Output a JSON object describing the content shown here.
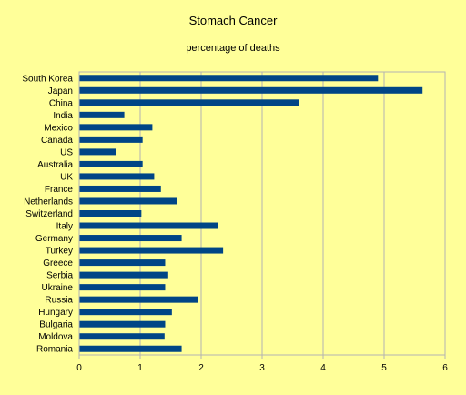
{
  "chart_data": {
    "type": "bar",
    "orientation": "horizontal",
    "title": "Stomach Cancer",
    "subtitle": "percentage of deaths",
    "xlabel": "",
    "ylabel": "",
    "xlim": [
      0,
      6
    ],
    "xticks": [
      0,
      1,
      2,
      3,
      4,
      5,
      6
    ],
    "grid": "vertical",
    "legend": "none",
    "bar_color": "#004586",
    "categories": [
      "South Korea",
      "Japan",
      "China",
      "India",
      "Mexico",
      "Canada",
      "US",
      "Australia",
      "UK",
      "France",
      "Netherlands",
      "Switzerland",
      "Italy",
      "Germany",
      "Turkey",
      "Greece",
      "Serbia",
      "Ukraine",
      "Russia",
      "Hungary",
      "Bulgaria",
      "Moldova",
      "Romania"
    ],
    "values": [
      4.9,
      5.63,
      3.6,
      0.74,
      1.2,
      1.04,
      0.61,
      1.04,
      1.23,
      1.34,
      1.61,
      1.02,
      2.28,
      1.68,
      2.36,
      1.41,
      1.46,
      1.41,
      1.95,
      1.52,
      1.41,
      1.4,
      1.68
    ]
  }
}
